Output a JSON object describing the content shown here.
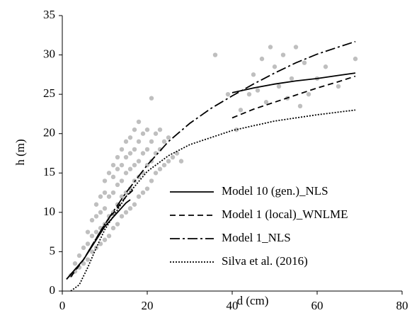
{
  "chart_data": {
    "type": "line",
    "x_label": "d (cm)",
    "y_label": "h (m)",
    "xlim": [
      0,
      80
    ],
    "xticks": [
      0,
      20,
      40,
      60,
      80
    ],
    "ylim": [
      0,
      35
    ],
    "yticks": [
      0,
      5,
      10,
      15,
      20,
      25,
      30,
      35
    ],
    "scatter": {
      "color": "#bfbfbf",
      "x": [
        2,
        3,
        3,
        4,
        4,
        5,
        5,
        6,
        6,
        6,
        7,
        7,
        7,
        8,
        8,
        8,
        8,
        9,
        9,
        9,
        9,
        10,
        10,
        10,
        10,
        10,
        11,
        11,
        11,
        11,
        12,
        12,
        12,
        12,
        12,
        13,
        13,
        13,
        13,
        13,
        14,
        14,
        14,
        14,
        14,
        15,
        15,
        15,
        15,
        15,
        16,
        16,
        16,
        16,
        16,
        17,
        17,
        17,
        17,
        17,
        18,
        18,
        18,
        18,
        18,
        19,
        19,
        19,
        19,
        20,
        20,
        20,
        20,
        21,
        21,
        21,
        21,
        22,
        22,
        22,
        23,
        23,
        23,
        24,
        24,
        25,
        25,
        26,
        27,
        28,
        36,
        39,
        41,
        42,
        44,
        45,
        46,
        47,
        48,
        49,
        50,
        51,
        52,
        53,
        54,
        55,
        56,
        57,
        58,
        60,
        62,
        65,
        69
      ],
      "values": [
        2,
        2.5,
        3.5,
        3,
        4.5,
        3.5,
        5.5,
        4,
        6,
        7.5,
        5,
        7,
        9,
        5.5,
        7.5,
        9.5,
        11,
        6,
        8,
        10,
        12,
        6.5,
        8.5,
        10.5,
        12.5,
        14,
        7,
        9.5,
        12,
        15,
        8,
        10,
        12.5,
        14.5,
        16,
        8.5,
        11,
        13.5,
        15.5,
        17,
        9.5,
        12,
        14,
        16,
        18,
        10,
        12.5,
        15,
        17,
        19,
        10.5,
        13,
        15.5,
        17.5,
        19.5,
        11,
        14,
        16,
        18,
        20.5,
        12,
        14.5,
        16.5,
        19,
        21.5,
        12.5,
        15,
        17.5,
        20,
        13,
        16,
        18,
        20.5,
        14,
        16.5,
        19,
        24.5,
        15,
        17.5,
        20,
        15.5,
        18,
        20.5,
        16,
        19,
        16.5,
        19.5,
        17,
        17.5,
        16.5,
        30,
        25,
        20.5,
        23,
        25,
        27.5,
        25.5,
        29.5,
        24,
        31,
        28.5,
        26,
        30,
        24.5,
        27,
        31,
        23.5,
        29,
        25,
        27,
        28.5,
        26,
        29.5
      ]
    },
    "series": [
      {
        "name": "Model 10 (gen.)_NLS",
        "color": "#000000",
        "style": "solid",
        "x": [
          1,
          5,
          10,
          15,
          16,
          null,
          40,
          45,
          50,
          55,
          60,
          65,
          69
        ],
        "values": [
          1.5,
          4,
          8.2,
          11.2,
          11.6,
          null,
          25.2,
          25.8,
          26.3,
          26.7,
          27.0,
          27.4,
          27.7
        ]
      },
      {
        "name": "Model 1 (local)_WNLME",
        "color": "#000000",
        "style": "dashed",
        "x": [
          2,
          5,
          10,
          15,
          17,
          null,
          40,
          45,
          50,
          55,
          60,
          65,
          69
        ],
        "values": [
          1.8,
          4,
          8.5,
          12,
          13,
          null,
          22,
          23.1,
          24,
          24.9,
          25.8,
          26.6,
          27.3
        ]
      },
      {
        "name": "Model 1_NLS",
        "color": "#000000",
        "style": "dashdot",
        "x": [
          1,
          5,
          10,
          15,
          20,
          25,
          30,
          35,
          40,
          45,
          50,
          55,
          60,
          65,
          69
        ],
        "values": [
          1.5,
          4,
          8.5,
          12.5,
          16,
          19,
          21.3,
          23.2,
          24.8,
          26.3,
          27.7,
          29,
          30.1,
          31,
          31.7
        ]
      },
      {
        "name": "Silva et al. (2016)",
        "color": "#000000",
        "style": "dotted",
        "x": [
          2,
          4,
          6,
          8,
          10,
          15,
          20,
          25,
          30,
          40,
          50,
          60,
          69
        ],
        "values": [
          0,
          0.8,
          3,
          5.5,
          7.8,
          12,
          15.2,
          17.2,
          18.6,
          20.4,
          21.6,
          22.4,
          23
        ]
      }
    ]
  }
}
